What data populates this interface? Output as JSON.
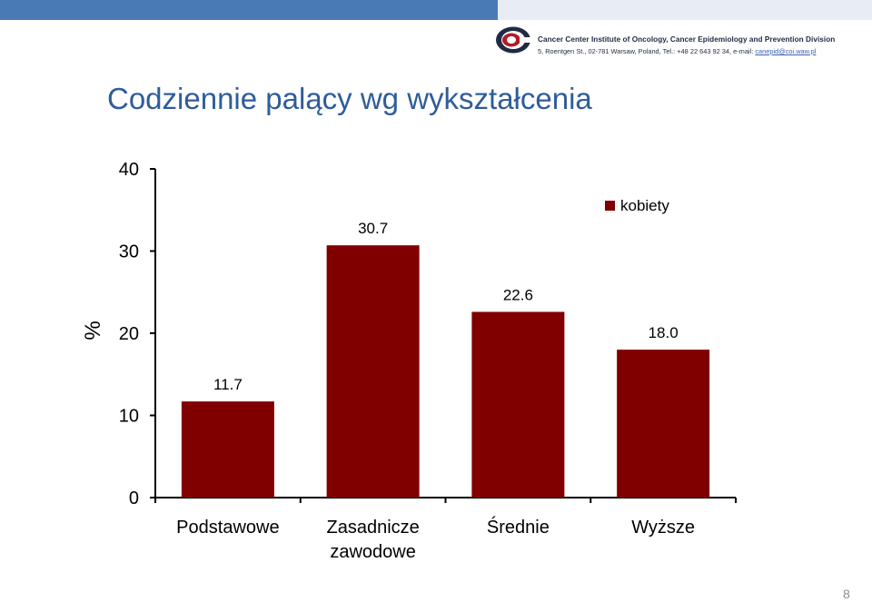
{
  "header": {
    "logo_name": "Cancer Center Institute of Oncology, Cancer Epidemiology and Prevention Division",
    "logo_address": "5, Roentgen St., 02-781 Warsaw, Poland, Tel.: +48 22 643 92 34, e-mail:",
    "logo_email": "canepid@coi.waw.pl"
  },
  "slide": {
    "title": "Codziennie palący wg wykształcenia",
    "page_number": "8"
  },
  "chart_data": {
    "type": "bar",
    "title": "",
    "xlabel": "",
    "ylabel": "%",
    "ylim": [
      0,
      40
    ],
    "yticks": [
      "0",
      "10",
      "20",
      "30",
      "40"
    ],
    "categories": [
      "Podstawowe",
      "Zasadnicze zawodowe",
      "Średnie",
      "Wyższe"
    ],
    "category_lines": [
      [
        "Podstawowe"
      ],
      [
        "Zasadnicze",
        "zawodowe"
      ],
      [
        "Średnie"
      ],
      [
        "Wyższe"
      ]
    ],
    "series": [
      {
        "name": "kobiety",
        "values": [
          11.7,
          30.7,
          22.6,
          18.0
        ],
        "labels": [
          "11.7",
          "30.7",
          "22.6",
          "18.0"
        ],
        "color": "#800000"
      }
    ],
    "legend_position": "top-right",
    "grid": false
  }
}
